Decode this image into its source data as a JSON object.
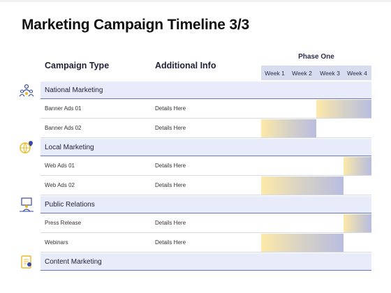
{
  "title": "Marketing Campaign Timeline 3/3",
  "columns": {
    "campaign_type": "Campaign Type",
    "additional_info": "Additional Info",
    "phase": "Phase One",
    "weeks": [
      "Week 1",
      "Week 2",
      "Week 3",
      "Week 4"
    ]
  },
  "colors": {
    "section_bg": "#e8ebf9",
    "bar_start": "#fde9a8",
    "bar_end": "#b8bde0",
    "icon_blue": "#3b4a9a",
    "icon_gold": "#e8b825"
  },
  "sections": [
    {
      "name": "National Marketing",
      "icon": "people-network-icon",
      "rows": [
        {
          "type": "Banner Ads 01",
          "info": "Details Here",
          "week_start": 3,
          "week_end": 4
        },
        {
          "type": "Banner Ads 02",
          "info": "Details Here",
          "week_start": 1,
          "week_end": 2
        }
      ]
    },
    {
      "name": "Local Marketing",
      "icon": "globe-pin-icon",
      "rows": [
        {
          "type": "Web Ads 01",
          "info": "Details Here",
          "week_start": 4,
          "week_end": 4
        },
        {
          "type": "Web Ads 02",
          "info": "Details Here",
          "week_start": 1,
          "week_end": 3
        }
      ]
    },
    {
      "name": "Public Relations",
      "icon": "presenter-icon",
      "rows": [
        {
          "type": "Press Release",
          "info": "Details Here",
          "week_start": 4,
          "week_end": 4
        },
        {
          "type": "Webinars",
          "info": "Details Here",
          "week_start": 1,
          "week_end": 3
        }
      ]
    },
    {
      "name": "Content Marketing",
      "icon": "document-icon",
      "rows": []
    }
  ]
}
